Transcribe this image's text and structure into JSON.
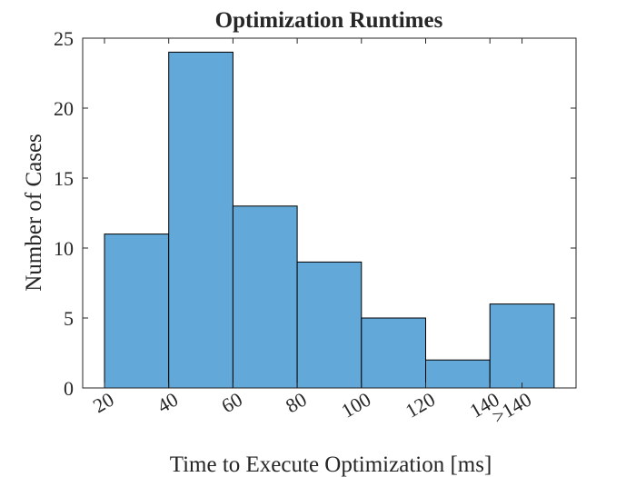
{
  "chart_data": {
    "type": "bar",
    "title": "Optimization Runtimes",
    "xlabel": "Time to Execute Optimization [ms]",
    "ylabel": "Number of Cases",
    "bin_edge_labels": [
      "20",
      "40",
      "60",
      "80",
      "100",
      "120",
      "140",
      ">140"
    ],
    "categories": [
      "20-40",
      "40-60",
      "60-80",
      "80-100",
      "100-120",
      "120-140",
      ">140"
    ],
    "values": [
      11,
      24,
      13,
      9,
      5,
      2,
      6
    ],
    "ylim": [
      0,
      25
    ],
    "yticks": [
      0,
      5,
      10,
      15,
      20,
      25
    ],
    "grid": false,
    "bar_color": "#62a8d8"
  }
}
